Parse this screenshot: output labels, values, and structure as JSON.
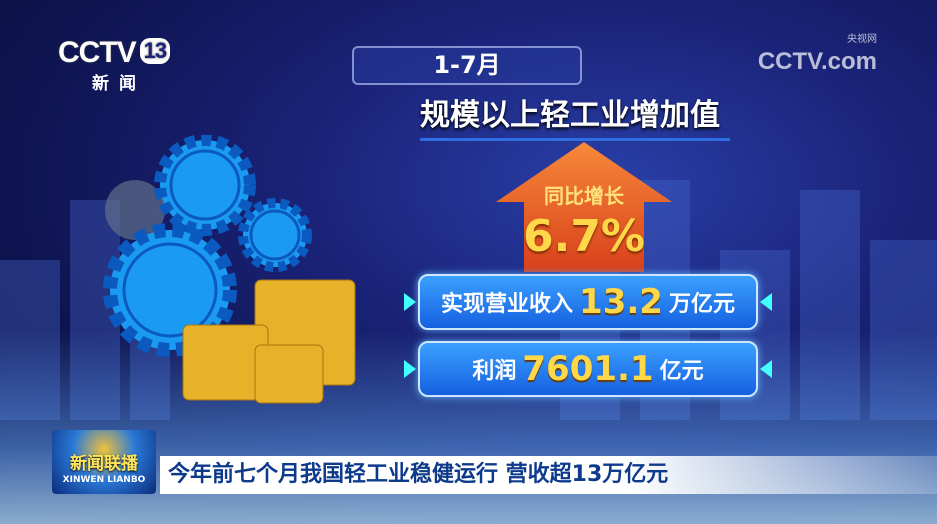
{
  "logos": {
    "channel": "CCTV",
    "channel_number": "13",
    "channel_name": "新闻",
    "website": "CCTV.com",
    "website_cn": "央视网"
  },
  "infographic": {
    "period": "1-7月",
    "title": "规模以上轻工业增加值",
    "growth": {
      "label": "同比增长",
      "value": "6.7%"
    },
    "revenue": {
      "label": "实现营业收入",
      "value": "13.2",
      "unit": "万亿元"
    },
    "profit": {
      "label": "利润",
      "value": "7601.1",
      "unit": "亿元"
    }
  },
  "program": {
    "name_cn": "新闻联播",
    "name_en": "XINWEN LIANBO"
  },
  "caption": "今年前七个月我国轻工业稳健运行 营收超13万亿元",
  "colors": {
    "accent_gold": "#ffd84a",
    "arrow_orange": "#e8501a",
    "panel_blue": "#1f78f0",
    "caption_text": "#0d3a8a"
  }
}
